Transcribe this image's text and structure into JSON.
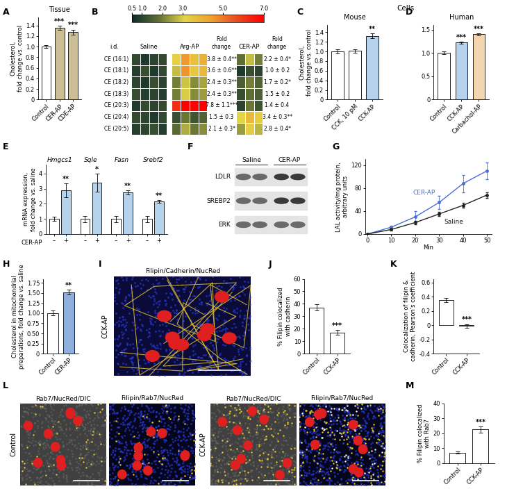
{
  "chart_data": [
    {
      "panel": "A",
      "type": "bar",
      "title": "Tissue",
      "ylabel": "Cholesterol,\nfold change vs. control",
      "categories": [
        "Control",
        "CER-AP",
        "CDE-AP"
      ],
      "values": [
        1.0,
        1.35,
        1.27
      ],
      "errors": [
        0.03,
        0.04,
        0.05
      ],
      "colors": [
        "#ffffff",
        "#cdbf95",
        "#cdbf95"
      ],
      "annotations": [
        null,
        "***",
        "***"
      ],
      "ylim": [
        0,
        1.55
      ],
      "yticks": [
        0,
        0.2,
        0.4,
        0.6,
        0.8,
        1.0,
        1.2,
        1.4
      ]
    },
    {
      "panel": "B",
      "type": "heatmap",
      "row_header": "i.d.",
      "fold_change_header": "Fold\nchange",
      "rows": [
        "CE (16:1)",
        "CE (18:1)",
        "CE (18:2)",
        "CE (18:3)",
        "CE (20:3)",
        "CE (20:4)",
        "CE (20:5)"
      ],
      "colors": [
        "#0d2b2b",
        "#5f6e35",
        "#e3d447",
        "#f0a030",
        "#e84a20",
        "#ff0000"
      ],
      "colorbar": {
        "range": [
          0.5,
          7.0
        ],
        "ticks": [
          0.5,
          1.0,
          2.0,
          3.0,
          5.0,
          7.0
        ]
      },
      "series": [
        {
          "name": "Saline",
          "cells": [
            [
              1.1,
              0.8,
              1.0,
              1.1
            ],
            [
              0.9,
              1.2,
              0.8,
              1.1
            ],
            [
              1.0,
              0.8,
              1.2,
              1.0
            ],
            [
              1.2,
              0.9,
              1.0,
              0.9
            ],
            [
              0.8,
              1.1,
              1.0,
              1.1
            ],
            [
              1.1,
              1.0,
              0.8,
              1.1
            ],
            [
              0.9,
              1.0,
              1.2,
              0.9
            ]
          ]
        },
        {
          "name": "Arg-AP",
          "cells": [
            [
              3.2,
              4.5,
              3.6,
              4.0
            ],
            [
              2.8,
              4.6,
              3.4,
              3.8
            ],
            [
              2.0,
              2.9,
              2.2,
              2.5
            ],
            [
              2.0,
              3.0,
              2.2,
              2.4
            ],
            [
              6.2,
              9.8,
              7.5,
              7.7
            ],
            [
              1.2,
              1.9,
              1.3,
              1.6
            ],
            [
              1.7,
              2.6,
              1.9,
              2.2
            ]
          ],
          "fold_change": [
            "3.8 ± 0.4**",
            "3.6 ± 0.6**",
            "2.4 ± 0.3**",
            "2.4 ± 0.3**",
            "7.8 ± 1.1***",
            "1.5 ± 0.3",
            "2.1 ± 0.3*"
          ]
        },
        {
          "name": "CER-AP",
          "cells": [
            [
              1.8,
              2.8,
              2.0
            ],
            [
              0.8,
              1.2,
              1.0
            ],
            [
              1.5,
              2.0,
              1.6
            ],
            [
              1.2,
              1.8,
              1.5
            ],
            [
              1.0,
              1.9,
              1.3
            ],
            [
              3.1,
              3.8,
              3.3
            ],
            [
              2.4,
              3.3,
              2.7
            ]
          ],
          "fold_change": [
            "2.2 ± 0.4*",
            "1.0 ± 0.2",
            "1.7 ± 0.2*",
            "1.5 ± 0.2",
            "1.4 ± 0.4",
            "3.4 ± 0.3**",
            "2.8 ± 0.4*"
          ]
        }
      ]
    },
    {
      "panel": "C",
      "type": "bar",
      "title": "Mouse",
      "subtitle": "Cells",
      "ylabel": "Cholesterol,\nfold change vs. control",
      "categories": [
        "Control",
        "CCK, 10 pM",
        "CCK-AP"
      ],
      "values": [
        1.0,
        1.01,
        1.32
      ],
      "errors": [
        0.05,
        0.04,
        0.05
      ],
      "colors": [
        "#ffffff",
        "#ffffff",
        "#b5d3ec"
      ],
      "annotations": [
        null,
        null,
        "**"
      ],
      "ylim": [
        0,
        1.55
      ],
      "yticks": [
        0,
        0.2,
        0.4,
        0.6,
        0.8,
        1.0,
        1.2,
        1.4
      ]
    },
    {
      "panel": "D",
      "type": "bar",
      "title": "Human",
      "categories": [
        "Control",
        "CCK-AP",
        "Carbachol-AP"
      ],
      "values": [
        1.0,
        1.22,
        1.4
      ],
      "errors": [
        0.03,
        0.02,
        0.02
      ],
      "colors": [
        "#ffffff",
        "#b5d3ec",
        "#f5d5b0"
      ],
      "annotations": [
        null,
        "***",
        "***"
      ],
      "ylim": [
        0,
        1.6
      ],
      "yticks": [
        0,
        0.5,
        1.0,
        1.5
      ]
    },
    {
      "panel": "E",
      "type": "grouped_bar",
      "ylabel": "mRNA expression,\nfold change vs. saline",
      "xlabel": "CER-AP",
      "categories": [
        "Hmgcs1",
        "Sqle",
        "Fasn",
        "Srebf2"
      ],
      "series": [
        {
          "name": "–",
          "color": "#ffffff",
          "values": [
            1,
            1,
            1,
            1
          ],
          "errors": [
            0.15,
            0.2,
            0.2,
            0.2
          ]
        },
        {
          "name": "+",
          "color": "#b5d3ec",
          "values": [
            2.9,
            3.4,
            2.75,
            2.15
          ],
          "errors": [
            0.45,
            0.6,
            0.12,
            0.1
          ],
          "annotations": [
            "**",
            "*",
            "**",
            "**"
          ]
        }
      ],
      "ylim": [
        0,
        4.6
      ],
      "yticks": [
        0,
        1,
        2,
        3,
        4
      ]
    },
    {
      "panel": "G",
      "type": "line",
      "xlabel": "Min",
      "ylabel": "LAL activity/mg protein,\narbitrary units",
      "x": [
        0,
        10,
        20,
        30,
        40,
        50
      ],
      "series": [
        {
          "name": "CER-AP",
          "color": "#4a6fd6",
          "marker": "o",
          "values": [
            0,
            12,
            30,
            55,
            88,
            110
          ],
          "errors": [
            0,
            3,
            10,
            12,
            15,
            15
          ]
        },
        {
          "name": "Saline",
          "color": "#222222",
          "marker": "o",
          "values": [
            0,
            8,
            20,
            35,
            50,
            68
          ],
          "errors": [
            0,
            2,
            3,
            4,
            4,
            5
          ]
        }
      ],
      "xlim": [
        -1,
        52
      ],
      "ylim": [
        0,
        130
      ],
      "xticks": [
        0,
        10,
        20,
        30,
        40,
        50
      ],
      "yticks": [
        0,
        40,
        80,
        120
      ]
    },
    {
      "panel": "H",
      "type": "bar",
      "ylabel": "Cholesterol in mitochondrial\npreparations, fold change vs. saline",
      "categories": [
        "Control",
        "CER-AP"
      ],
      "values": [
        1.0,
        1.52
      ],
      "errors": [
        0.06,
        0.06
      ],
      "colors": [
        "#ffffff",
        "#8fb0dd"
      ],
      "annotations": [
        null,
        "**"
      ],
      "ylim": [
        0,
        1.85
      ],
      "yticks": [
        0,
        0.25,
        {
          "value": 0.5,
          "label": "0.50"
        },
        0.75,
        {
          "value": 1.0,
          "label": "1.00"
        },
        1.25,
        {
          "value": 1.5,
          "label": "1.50"
        },
        1.75
      ]
    },
    {
      "panel": "J",
      "type": "bar",
      "ylabel": "% Filipin colocalized\nwith cadherin",
      "categories": [
        "Control",
        "CCK-AP"
      ],
      "values": [
        37,
        17
      ],
      "errors": [
        2.5,
        2
      ],
      "colors": [
        "#ffffff",
        "#ffffff"
      ],
      "annotations": [
        null,
        "***"
      ],
      "ylim": [
        0,
        60
      ],
      "yticks": [
        0,
        10,
        20,
        30,
        40,
        50,
        60
      ]
    },
    {
      "panel": "K",
      "type": "bar",
      "ylabel": "Colocalization of filipin &\ncadherin, Pearson's coefficient",
      "categories": [
        "Control",
        "CCK-AP"
      ],
      "values": [
        0.35,
        -0.01
      ],
      "errors": [
        0.03,
        0.025
      ],
      "colors": [
        "#ffffff",
        "#ffffff"
      ],
      "annotations": [
        null,
        "***"
      ],
      "ylim": [
        -0.4,
        0.65
      ],
      "yticks": [
        -0.4,
        -0.2,
        0,
        0.2,
        0.4,
        0.6
      ]
    },
    {
      "panel": "M",
      "type": "bar",
      "ylabel": "% Filipin colocalized\nwith Rab7",
      "categories": [
        "Control",
        "CCK-AP"
      ],
      "values": [
        7,
        22.5
      ],
      "errors": [
        0.8,
        2.0
      ],
      "colors": [
        "#ffffff",
        "#ffffff"
      ],
      "annotations": [
        null,
        "***"
      ],
      "ylim": [
        0,
        40
      ],
      "yticks": [
        0,
        10,
        20,
        30,
        40
      ]
    }
  ],
  "blot": {
    "panel": "F",
    "columns": [
      "Saline",
      "CER-AP"
    ],
    "rows": [
      "LDLR",
      "SREBP2",
      "ERK"
    ]
  },
  "image_panels": [
    {
      "panel": "I",
      "conditions": [
        "CCK-AP"
      ],
      "channels": [
        "Filipin/Cadherin/NucRed"
      ]
    },
    {
      "panel": "L",
      "conditions": [
        "Control",
        "CCK-AP"
      ],
      "channels": [
        "Rab7/NucRed/DIC",
        "Filipin/Rab7/NucRed"
      ]
    }
  ]
}
